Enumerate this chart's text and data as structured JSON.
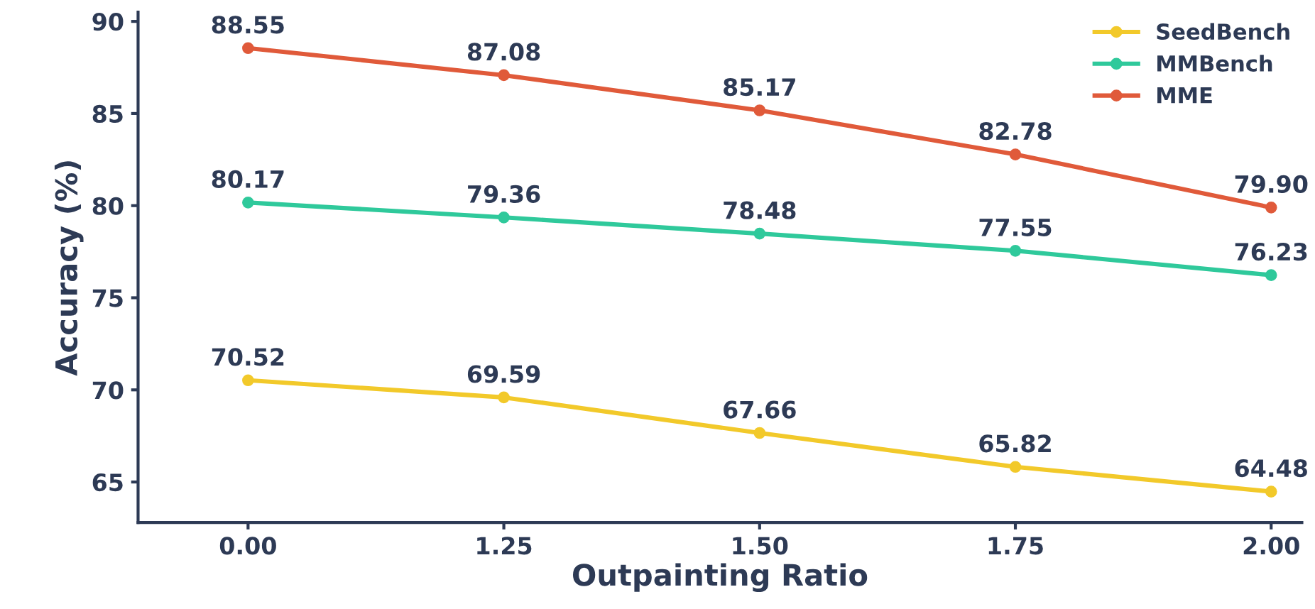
{
  "chart_data": {
    "type": "line",
    "xlabel": "Outpainting Ratio",
    "ylabel": "Accuracy (%)",
    "categories": [
      "0.00",
      "1.25",
      "1.50",
      "1.75",
      "2.00"
    ],
    "series": [
      {
        "name": "SeedBench",
        "color": "#f2c92a",
        "values": [
          70.52,
          69.59,
          67.66,
          65.82,
          64.48
        ],
        "value_labels": [
          "70.52",
          "69.59",
          "67.66",
          "65.82",
          "64.48"
        ]
      },
      {
        "name": "MMBench",
        "color": "#2fc99b",
        "values": [
          80.17,
          79.36,
          78.48,
          77.55,
          76.23
        ],
        "value_labels": [
          "80.17",
          "79.36",
          "78.48",
          "77.55",
          "76.23"
        ]
      },
      {
        "name": "MME",
        "color": "#e05a3a",
        "values": [
          88.55,
          87.08,
          85.17,
          82.78,
          79.9
        ],
        "value_labels": [
          "88.55",
          "87.08",
          "85.17",
          "82.78",
          "79.90"
        ]
      }
    ],
    "ylim": [
      62.8,
      90.5
    ],
    "yticks": [
      65,
      70,
      75,
      80,
      85,
      90
    ],
    "grid": false,
    "legend": "top right",
    "marker": "circle",
    "line_style": "solid"
  }
}
